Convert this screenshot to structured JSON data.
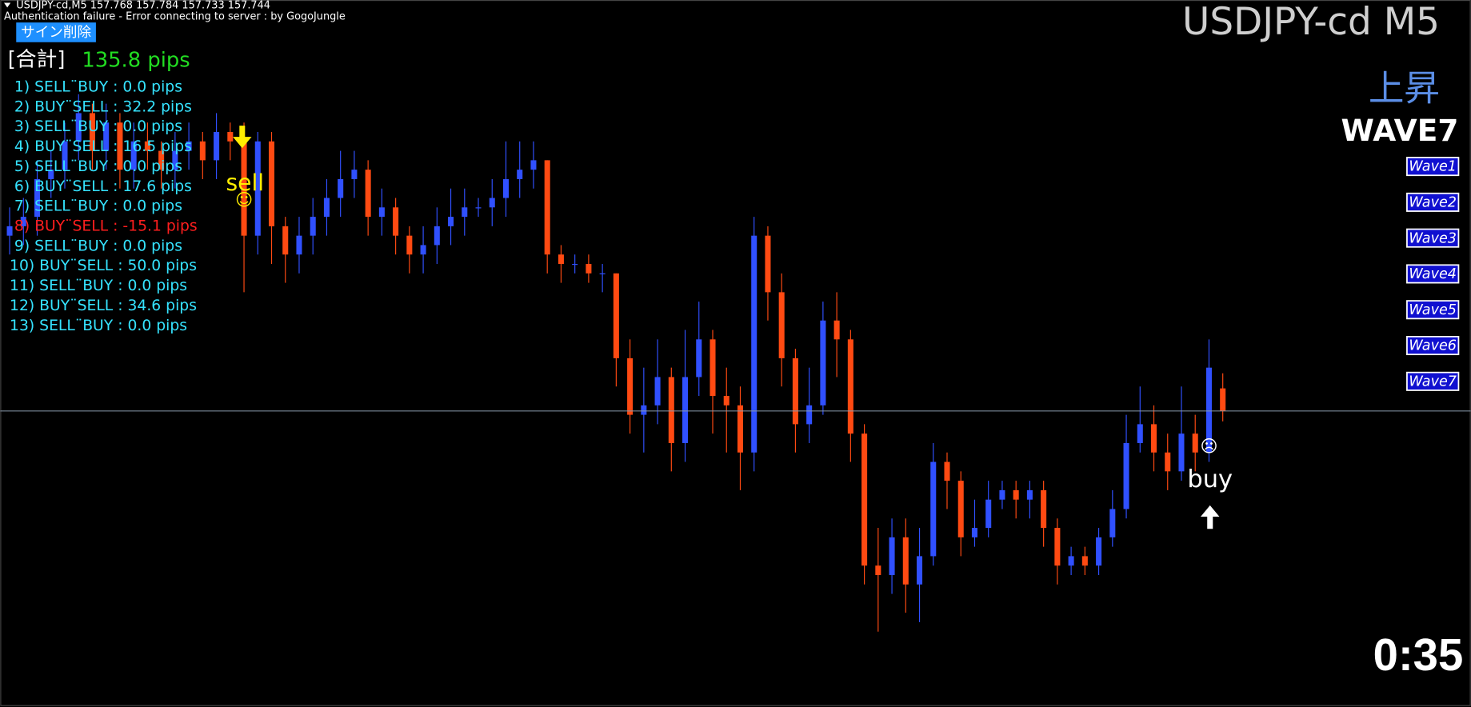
{
  "header": {
    "symbol_line": "USDJPY-cd,M5  157.768 157.784 157.733 157.744",
    "status": "Authentication failure - Error connecting to server : by GogoJungle"
  },
  "button": "サイン削除",
  "total": {
    "label": "[合計]",
    "value": "135.8 pips"
  },
  "trades": [
    {
      "text": "1) SELL¨BUY : 0.0 pips",
      "color": "#35e3ff"
    },
    {
      "text": "2) BUY¨SELL : 32.2 pips",
      "color": "#35e3ff"
    },
    {
      "text": "3) SELL¨BUY : 0.0 pips",
      "color": "#35e3ff"
    },
    {
      "text": "4) BUY¨SELL : 16.5 pips",
      "color": "#35e3ff"
    },
    {
      "text": "5) SELL¨BUY : 0.0 pips",
      "color": "#35e3ff"
    },
    {
      "text": "6) BUY¨SELL : 17.6 pips",
      "color": "#35e3ff"
    },
    {
      "text": "7) SELL¨BUY : 0.0 pips",
      "color": "#35e3ff"
    },
    {
      "text": "8) BUY¨SELL : -15.1 pips",
      "color": "#ff1e1e"
    },
    {
      "text": "9) SELL¨BUY : 0.0 pips",
      "color": "#35e3ff"
    },
    {
      "text": "10) BUY¨SELL : 50.0 pips",
      "color": "#35e3ff"
    },
    {
      "text": "11) SELL¨BUY : 0.0 pips",
      "color": "#35e3ff"
    },
    {
      "text": "12) BUY¨SELL : 34.6 pips",
      "color": "#35e3ff"
    },
    {
      "text": "13) SELL¨BUY : 0.0 pips",
      "color": "#35e3ff"
    }
  ],
  "chart_data": {
    "type": "candlestick",
    "ylim": [
      157.43,
      158.18
    ],
    "up_color": "#3050ff",
    "down_color": "#ff4a12",
    "open": [
      157.93,
      157.94,
      157.95,
      157.99,
      158.0,
      158.03,
      158.06,
      158.02,
      158.05,
      158.0,
      158.03,
      158.02,
      158.0,
      158.02,
      158.03,
      158.01,
      158.04,
      158.03,
      157.93,
      158.03,
      157.94,
      157.91,
      157.93,
      157.95,
      157.97,
      157.99,
      158.0,
      157.95,
      157.96,
      157.93,
      157.91,
      157.92,
      157.94,
      157.95,
      157.96,
      157.96,
      157.97,
      157.99,
      158.0,
      158.01,
      157.91,
      157.9,
      157.9,
      157.89,
      157.89,
      157.8,
      157.74,
      157.75,
      157.78,
      157.71,
      157.78,
      157.82,
      157.76,
      157.75,
      157.7,
      157.93,
      157.87,
      157.8,
      157.73,
      157.75,
      157.84,
      157.82,
      157.72,
      157.58,
      157.57,
      157.61,
      157.56,
      157.59,
      157.69,
      157.67,
      157.61,
      157.62,
      157.65,
      157.66,
      157.65,
      157.66,
      157.62,
      157.58,
      157.59,
      157.58,
      157.61,
      157.64,
      157.71,
      157.73,
      157.7,
      157.68,
      157.72,
      157.7,
      157.768
    ],
    "high": [
      157.96,
      157.97,
      158.01,
      158.02,
      158.05,
      158.08,
      158.07,
      158.07,
      158.06,
      158.05,
      158.05,
      158.03,
      158.04,
      158.05,
      158.04,
      158.06,
      158.05,
      158.05,
      158.04,
      158.04,
      157.95,
      157.95,
      157.97,
      157.99,
      158.02,
      158.02,
      158.01,
      157.98,
      157.97,
      157.94,
      157.94,
      157.96,
      157.98,
      157.98,
      157.97,
      157.99,
      158.03,
      158.03,
      158.03,
      158.01,
      157.92,
      157.91,
      157.91,
      157.9,
      157.89,
      157.82,
      157.79,
      157.82,
      157.79,
      157.83,
      157.86,
      157.83,
      157.79,
      157.77,
      157.95,
      157.94,
      157.89,
      157.81,
      157.79,
      157.86,
      157.87,
      157.83,
      157.73,
      157.62,
      157.63,
      157.63,
      157.62,
      157.71,
      157.7,
      157.68,
      157.65,
      157.67,
      157.67,
      157.67,
      157.67,
      157.67,
      157.63,
      157.6,
      157.6,
      157.62,
      157.66,
      157.74,
      157.77,
      157.75,
      157.72,
      157.77,
      157.74,
      157.82,
      157.784
    ],
    "low": [
      157.91,
      157.92,
      157.93,
      157.97,
      157.98,
      158.01,
      158.0,
      158.0,
      157.98,
      157.98,
      158.0,
      157.98,
      157.98,
      158.0,
      157.99,
      157.99,
      158.01,
      157.87,
      157.91,
      157.9,
      157.88,
      157.89,
      157.91,
      157.93,
      157.95,
      157.97,
      157.93,
      157.93,
      157.91,
      157.89,
      157.89,
      157.9,
      157.92,
      157.93,
      157.95,
      157.94,
      157.95,
      157.97,
      157.98,
      157.89,
      157.88,
      157.89,
      157.88,
      157.87,
      157.77,
      157.72,
      157.7,
      157.73,
      157.68,
      157.69,
      157.76,
      157.72,
      157.7,
      157.66,
      157.68,
      157.84,
      157.77,
      157.7,
      157.71,
      157.74,
      157.78,
      157.69,
      157.56,
      157.51,
      157.55,
      157.53,
      157.52,
      157.58,
      157.64,
      157.59,
      157.6,
      157.61,
      157.64,
      157.63,
      157.63,
      157.6,
      157.56,
      157.57,
      157.57,
      157.57,
      157.6,
      157.63,
      157.7,
      157.68,
      157.66,
      157.67,
      157.68,
      157.69,
      157.733
    ],
    "close": [
      157.94,
      157.95,
      157.99,
      158.0,
      158.03,
      158.06,
      158.02,
      158.05,
      158.0,
      158.03,
      158.02,
      158.0,
      158.02,
      158.03,
      158.01,
      158.04,
      158.03,
      157.93,
      158.03,
      157.94,
      157.91,
      157.93,
      157.95,
      157.97,
      157.99,
      158.0,
      157.95,
      157.96,
      157.93,
      157.91,
      157.92,
      157.94,
      157.95,
      157.96,
      157.96,
      157.97,
      157.99,
      158.0,
      158.01,
      157.91,
      157.9,
      157.9,
      157.89,
      157.89,
      157.8,
      157.74,
      157.75,
      157.78,
      157.71,
      157.78,
      157.82,
      157.76,
      157.75,
      157.7,
      157.93,
      157.87,
      157.8,
      157.73,
      157.75,
      157.84,
      157.82,
      157.72,
      157.58,
      157.57,
      157.61,
      157.56,
      157.59,
      157.69,
      157.67,
      157.61,
      157.62,
      157.65,
      157.66,
      157.65,
      157.66,
      157.62,
      157.58,
      157.59,
      157.58,
      157.61,
      157.64,
      157.71,
      157.73,
      157.7,
      157.68,
      157.72,
      157.7,
      157.79,
      157.744
    ]
  },
  "signals": {
    "sell": {
      "label": "sell",
      "face": "☺"
    },
    "buy": {
      "label": "buy",
      "face": "☹"
    }
  },
  "panel": {
    "title": "USDJPY-cd M5",
    "trend": "上昇",
    "wave": "WAVE7",
    "buttons": [
      "Wave1",
      "Wave2",
      "Wave3",
      "Wave4",
      "Wave5",
      "Wave6",
      "Wave7"
    ]
  },
  "timer": "0:35"
}
